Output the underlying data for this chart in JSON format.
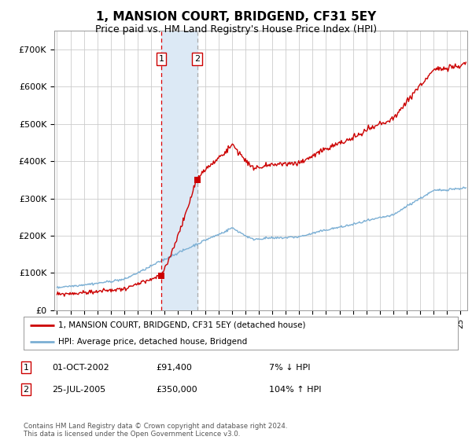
{
  "title": "1, MANSION COURT, BRIDGEND, CF31 5EY",
  "subtitle": "Price paid vs. HM Land Registry's House Price Index (HPI)",
  "title_fontsize": 11,
  "subtitle_fontsize": 9,
  "background_color": "#ffffff",
  "plot_bg_color": "#ffffff",
  "grid_color": "#cccccc",
  "hpi_line_color": "#7bafd4",
  "price_line_color": "#cc0000",
  "t1": 2002.75,
  "p1": 91400,
  "t2": 2005.42,
  "p2": 350000,
  "highlight_color": "#dce9f5",
  "dashed_line1_color": "#dd0000",
  "dashed_line2_color": "#aaaaaa",
  "ylim": [
    0,
    750000
  ],
  "xlim_start": 1994.8,
  "xlim_end": 2025.5,
  "yticks": [
    0,
    100000,
    200000,
    300000,
    400000,
    500000,
    600000,
    700000
  ],
  "ytick_labels": [
    "£0",
    "£100K",
    "£200K",
    "£300K",
    "£400K",
    "£500K",
    "£600K",
    "£700K"
  ],
  "xtick_years": [
    1995,
    1996,
    1997,
    1998,
    1999,
    2000,
    2001,
    2002,
    2003,
    2004,
    2005,
    2006,
    2007,
    2008,
    2009,
    2010,
    2011,
    2012,
    2013,
    2014,
    2015,
    2016,
    2017,
    2018,
    2019,
    2020,
    2021,
    2022,
    2023,
    2024,
    2025
  ],
  "legend_price_label": "1, MANSION COURT, BRIDGEND, CF31 5EY (detached house)",
  "legend_hpi_label": "HPI: Average price, detached house, Bridgend",
  "table_rows": [
    {
      "num": "1",
      "date": "01-OCT-2002",
      "price": "£91,400",
      "hpi": "7% ↓ HPI"
    },
    {
      "num": "2",
      "date": "25-JUL-2005",
      "price": "£350,000",
      "hpi": "104% ↑ HPI"
    }
  ],
  "footer": "Contains HM Land Registry data © Crown copyright and database right 2024.\nThis data is licensed under the Open Government Licence v3.0."
}
